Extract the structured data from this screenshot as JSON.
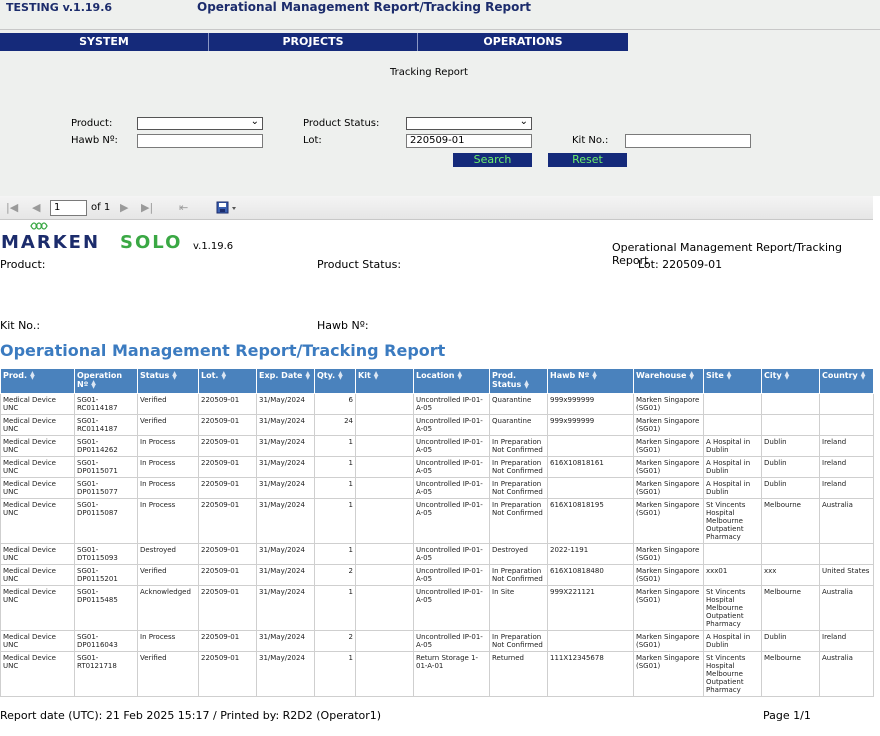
{
  "app": {
    "version": "TESTING v.1.19.6",
    "title": "Operational Management Report/Tracking Report"
  },
  "nav": [
    {
      "label": "SYSTEM"
    },
    {
      "label": "PROJECTS"
    },
    {
      "label": "OPERATIONS"
    }
  ],
  "form": {
    "title": "Tracking Report",
    "product_label": "Product:",
    "product_value": "",
    "product_status_label": "Product Status:",
    "product_status_value": "",
    "hawb_label": "Hawb Nº:",
    "hawb_value": "",
    "lot_label": "Lot:",
    "lot_value": "220509-01",
    "kit_label": "Kit No.:",
    "kit_value": "",
    "search_label": "Search",
    "reset_label": "Reset"
  },
  "toolbar": {
    "page_value": "1",
    "page_of": "of 1",
    "icons": [
      "first-page-icon",
      "prev-page-icon",
      "next-page-icon",
      "last-page-icon",
      "back-icon",
      "save-export-icon"
    ]
  },
  "report": {
    "logo_word1": "MARKEN",
    "logo_word2": "SOLO",
    "logo_version": "v.1.19.6",
    "header_title": "Operational Management Report/Tracking Report",
    "product_label": "Product:",
    "product_status_label": "Product Status:",
    "lot_label": "Lot: 220509-01",
    "kit_label": "Kit No.:",
    "hawb_label": "Hawb Nº:",
    "title": "Operational Management Report/Tracking Report",
    "footer_left": "Report date (UTC): 21 Feb 2025 15:17 / Printed by: R2D2 (Operator1)",
    "footer_right": "Page 1/1"
  },
  "table": {
    "headers": [
      "Prod.",
      "Operation Nº",
      "Status",
      "Lot.",
      "Exp. Date",
      "Qty.",
      "Kit",
      "Location",
      "Prod. Status",
      "Hawb Nº",
      "Warehouse",
      "Site",
      "City",
      "Country"
    ],
    "rows": [
      [
        "Medical Device UNC",
        "SG01-RC0114187",
        "Verified",
        "220509-01",
        "31/May/2024",
        "6",
        "",
        "Uncontrolled IP-01-A-05",
        "Quarantine",
        "999x999999",
        "Marken Singapore (SG01)",
        "",
        "",
        ""
      ],
      [
        "Medical Device UNC",
        "SG01-RC0114187",
        "Verified",
        "220509-01",
        "31/May/2024",
        "24",
        "",
        "Uncontrolled IP-01-A-05",
        "Quarantine",
        "999x999999",
        "Marken Singapore (SG01)",
        "",
        "",
        ""
      ],
      [
        "Medical Device UNC",
        "SG01-DP0114262",
        "In Process",
        "220509-01",
        "31/May/2024",
        "1",
        "",
        "Uncontrolled IP-01-A-05",
        "In Preparation Not Confirmed",
        "",
        "Marken Singapore (SG01)",
        "A Hospital in Dublin",
        "Dublin",
        "Ireland"
      ],
      [
        "Medical Device UNC",
        "SG01-DP0115071",
        "In Process",
        "220509-01",
        "31/May/2024",
        "1",
        "",
        "Uncontrolled IP-01-A-05",
        "In Preparation Not Confirmed",
        "616X10818161",
        "Marken Singapore (SG01)",
        "A Hospital in Dublin",
        "Dublin",
        "Ireland"
      ],
      [
        "Medical Device UNC",
        "SG01-DP0115077",
        "In Process",
        "220509-01",
        "31/May/2024",
        "1",
        "",
        "Uncontrolled IP-01-A-05",
        "In Preparation Not Confirmed",
        "",
        "Marken Singapore (SG01)",
        "A Hospital in Dublin",
        "Dublin",
        "Ireland"
      ],
      [
        "Medical Device UNC",
        "SG01-DP0115087",
        "In Process",
        "220509-01",
        "31/May/2024",
        "1",
        "",
        "Uncontrolled IP-01-A-05",
        "In Preparation Not Confirmed",
        "616X10818195",
        "Marken Singapore (SG01)",
        "St Vincents Hospital Melbourne Outpatient Pharmacy",
        "Melbourne",
        "Australia"
      ],
      [
        "Medical Device UNC",
        "SG01-DT0115093",
        "Destroyed",
        "220509-01",
        "31/May/2024",
        "1",
        "",
        "Uncontrolled IP-01-A-05",
        "Destroyed",
        "2022-1191",
        "Marken Singapore (SG01)",
        "",
        "",
        ""
      ],
      [
        "Medical Device UNC",
        "SG01-DP0115201",
        "Verified",
        "220509-01",
        "31/May/2024",
        "2",
        "",
        "Uncontrolled IP-01-A-05",
        "In Preparation Not Confirmed",
        "616X10818480",
        "Marken Singapore (SG01)",
        "xxx01",
        "xxx",
        "United States"
      ],
      [
        "Medical Device UNC",
        "SG01-DP0115485",
        "Acknowledged",
        "220509-01",
        "31/May/2024",
        "1",
        "",
        "Uncontrolled IP-01-A-05",
        "In Site",
        "999X221121",
        "Marken Singapore (SG01)",
        "St Vincents Hospital Melbourne Outpatient Pharmacy",
        "Melbourne",
        "Australia"
      ],
      [
        "Medical Device UNC",
        "SG01-DP0116043",
        "In Process",
        "220509-01",
        "31/May/2024",
        "2",
        "",
        "Uncontrolled IP-01-A-05",
        "In Preparation Not Confirmed",
        "",
        "Marken Singapore (SG01)",
        "A Hospital in Dublin",
        "Dublin",
        "Ireland"
      ],
      [
        "Medical Device UNC",
        "SG01-RT0121718",
        "Verified",
        "220509-01",
        "31/May/2024",
        "1",
        "",
        "Return Storage 1-01-A-01",
        "Returned",
        "111X12345678",
        "Marken Singapore (SG01)",
        "St Vincents Hospital Melbourne Outpatient Pharmacy",
        "Melbourne",
        "Australia"
      ]
    ]
  },
  "colors": {
    "nav_bg": "#152a7a",
    "button_text": "#6cf06c",
    "table_header": "#4a82bd",
    "report_title": "#3b7bc0",
    "logo_blue": "#1c2c6c",
    "logo_green": "#3aa844"
  }
}
